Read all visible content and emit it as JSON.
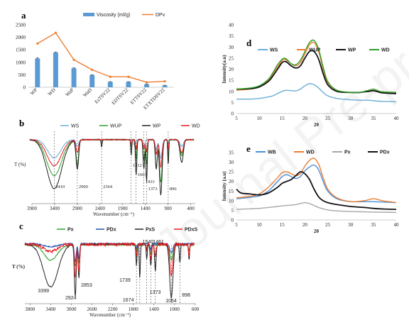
{
  "watermark": "Journal Pre-proof",
  "chart_data": [
    {
      "panel": "a",
      "type": "bar",
      "categories": [
        "WP",
        "WD",
        "WaP",
        "WaD",
        "EsTSV22",
        "EDTSV22",
        "ETTSV22",
        "ETXTDSV22"
      ],
      "series": [
        {
          "name": "Viscosity (ml/g)",
          "kind": "bar",
          "color": "#5b9bd5",
          "values": [
            1150,
            1390,
            760,
            490,
            215,
            215,
            120,
            75
          ],
          "errors": [
            30,
            25,
            20,
            15,
            10,
            10,
            10,
            10
          ]
        },
        {
          "name": "DPv",
          "kind": "line",
          "color": "#ed7d31",
          "values": [
            1750,
            2180,
            1100,
            700,
            420,
            420,
            200,
            240
          ]
        }
      ],
      "ylim": [
        0,
        2500
      ],
      "yticks": [
        "0",
        "500",
        "1000",
        "1500",
        "2000",
        "2500"
      ]
    },
    {
      "panel": "b",
      "type": "line",
      "xlabel": "Wavenumber (cm⁻¹)",
      "ylabel": "T (%)",
      "xlim": [
        3900,
        300
      ],
      "xticks": [
        "3900",
        "3400",
        "2900",
        "2400",
        "1900",
        "1400",
        "900",
        "400"
      ],
      "series": [
        {
          "name": "WS",
          "color": "#6baed6"
        },
        {
          "name": "WUP",
          "color": "#2ca02c"
        },
        {
          "name": "WP",
          "color": "#222222"
        },
        {
          "name": "WD",
          "color": "#e41a1c"
        }
      ],
      "annotations": [
        "3410",
        "2900",
        "2364",
        "1712",
        "1603",
        "1433",
        "1373",
        "896"
      ]
    },
    {
      "panel": "c",
      "type": "line",
      "xlabel": "Wavenumber (cm⁻¹)",
      "ylabel": "T (%)",
      "xlim": [
        3900,
        600
      ],
      "xticks": [
        "3800",
        "3400",
        "3000",
        "2600",
        "2200",
        "1800",
        "1400",
        "1000",
        "600"
      ],
      "series": [
        {
          "name": "Px",
          "color": "#2ca02c"
        },
        {
          "name": "PDx",
          "color": "#1f4fb0"
        },
        {
          "name": "PxS",
          "color": "#222222"
        },
        {
          "name": "PDxS",
          "color": "#e41a1c"
        }
      ],
      "annotations": [
        "3399",
        "2924",
        "2853",
        "1739",
        "1674",
        "1540",
        "1461",
        "1373",
        "1064",
        "898"
      ]
    },
    {
      "panel": "d",
      "type": "line",
      "xlabel": "2θ",
      "ylabel": "Intensity(a.u)",
      "xlim": [
        5,
        40
      ],
      "ylim": [
        0,
        40
      ],
      "xticks": [
        "5",
        "10",
        "15",
        "20",
        "25",
        "30",
        "35",
        "40"
      ],
      "yticks": [
        "0",
        "5",
        "10",
        "15",
        "20",
        "25",
        "30",
        "35",
        "40"
      ],
      "x": [
        5,
        8,
        10,
        12,
        13,
        14,
        15,
        15.5,
        16,
        17,
        18,
        19,
        20,
        21,
        22,
        23,
        24,
        25,
        27,
        30,
        32,
        33,
        34,
        35,
        36,
        37,
        40
      ],
      "series": [
        {
          "name": "WS",
          "color": "#6baed6",
          "values": [
            6.5,
            6.5,
            6.8,
            7.5,
            8,
            9,
            10,
            10.3,
            10.5,
            10.3,
            10.2,
            11,
            12.5,
            13.5,
            13,
            11.5,
            9.5,
            8,
            6.8,
            6.2,
            6,
            6,
            6,
            5.8,
            5.6,
            5.5,
            5.3
          ]
        },
        {
          "name": "WUP",
          "color": "#ed7d31",
          "values": [
            10.5,
            11,
            12,
            15,
            18,
            21,
            24,
            24.5,
            24,
            22.5,
            21.5,
            23,
            27,
            31,
            32,
            28,
            20,
            14,
            10.5,
            9.5,
            9.5,
            10,
            10.5,
            11,
            10.3,
            9.8,
            9.5
          ]
        },
        {
          "name": "WP",
          "color": "#111111",
          "values": [
            11,
            11.2,
            12,
            14.5,
            17,
            20,
            23,
            23.5,
            23.2,
            21.5,
            20.5,
            21.5,
            25,
            28,
            28,
            24.5,
            18,
            13,
            10,
            9.5,
            9.5,
            9.8,
            10,
            10.3,
            9.8,
            9.3,
            9
          ]
        },
        {
          "name": "WD",
          "color": "#2ca02c",
          "values": [
            11,
            11.5,
            12.5,
            15.5,
            18.5,
            22,
            24.5,
            25,
            24.5,
            22.5,
            22,
            24,
            28,
            32,
            33,
            29,
            21,
            14.5,
            10.5,
            9.5,
            9.5,
            10,
            10.5,
            11,
            10.3,
            9.8,
            9.5
          ]
        }
      ]
    },
    {
      "panel": "e",
      "type": "line",
      "xlabel": "2θ",
      "ylabel": "Intensity (a.u)",
      "xlim": [
        5,
        40
      ],
      "ylim": [
        0,
        35
      ],
      "xticks": [
        "5",
        "10",
        "15",
        "20",
        "25",
        "30",
        "35",
        "40"
      ],
      "yticks": [
        "0",
        "5",
        "10",
        "15",
        "20",
        "25",
        "30",
        "35"
      ],
      "x": [
        5,
        6,
        8,
        10,
        12,
        14,
        15,
        16,
        17,
        18,
        19,
        20,
        21,
        22,
        23,
        24,
        25,
        27,
        30,
        33,
        35,
        37,
        40
      ],
      "series": [
        {
          "name": "WB",
          "color": "#4a90d9",
          "values": [
            11,
            11.2,
            11.8,
            12.5,
            15,
            20,
            22.5,
            23.5,
            22.5,
            21.5,
            22.5,
            25.5,
            27.5,
            28.5,
            26,
            20,
            15,
            11,
            9.5,
            9.5,
            9.5,
            9.3,
            9
          ]
        },
        {
          "name": "WD",
          "color": "#ed7d31",
          "values": [
            11.5,
            11.7,
            12.3,
            13.5,
            17,
            22,
            24.5,
            25,
            24,
            23,
            24,
            28,
            31,
            32,
            29,
            22,
            16,
            11.5,
            9.5,
            10,
            11,
            10,
            9
          ]
        },
        {
          "name": "Px",
          "color": "#a6a6a6",
          "values": [
            5.5,
            5.6,
            5.8,
            6,
            6.5,
            7,
            7.3,
            7.5,
            7.7,
            8,
            8.5,
            9,
            8.5,
            7.5,
            6.5,
            5.8,
            5.2,
            4.7,
            4.4,
            4.2,
            4.1,
            4,
            3.9
          ]
        },
        {
          "name": "PDx",
          "color": "#111111",
          "values": [
            16,
            14,
            13.5,
            13,
            14,
            17,
            19,
            20,
            21,
            23,
            25,
            24,
            21,
            16,
            12,
            10,
            9,
            8,
            7,
            6.5,
            6,
            5.7,
            5.5
          ]
        }
      ]
    }
  ]
}
